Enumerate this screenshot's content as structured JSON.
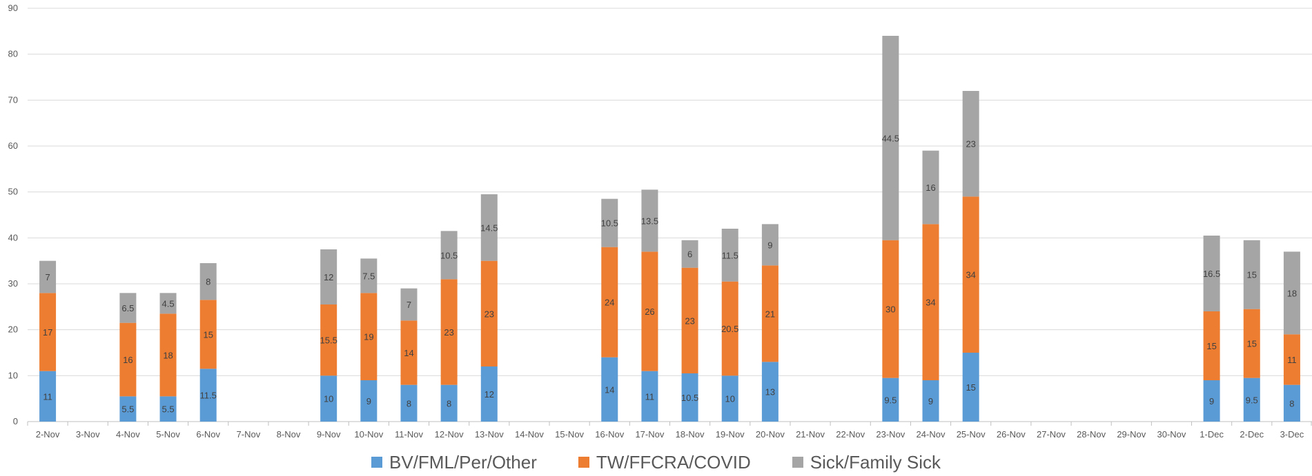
{
  "chart_data": {
    "type": "bar",
    "stacked": true,
    "title": "",
    "xlabel": "",
    "ylabel": "",
    "ylim": [
      0,
      90
    ],
    "yticks": [
      0,
      10,
      20,
      30,
      40,
      50,
      60,
      70,
      80,
      90
    ],
    "grid": "horizontal",
    "legend_position": "bottom",
    "categories": [
      "2-Nov",
      "3-Nov",
      "4-Nov",
      "5-Nov",
      "6-Nov",
      "7-Nov",
      "8-Nov",
      "9-Nov",
      "10-Nov",
      "11-Nov",
      "12-Nov",
      "13-Nov",
      "14-Nov",
      "15-Nov",
      "16-Nov",
      "17-Nov",
      "18-Nov",
      "19-Nov",
      "20-Nov",
      "21-Nov",
      "22-Nov",
      "23-Nov",
      "24-Nov",
      "25-Nov",
      "26-Nov",
      "27-Nov",
      "28-Nov",
      "29-Nov",
      "30-Nov",
      "1-Dec",
      "2-Dec",
      "3-Dec"
    ],
    "series": [
      {
        "name": "BV/FML/Per/Other",
        "color": "#5B9BD5",
        "values": [
          11,
          null,
          5.5,
          5.5,
          11.5,
          null,
          null,
          10,
          9,
          8,
          8,
          12,
          null,
          null,
          14,
          11,
          10.5,
          10,
          13,
          null,
          null,
          9.5,
          9,
          15,
          null,
          null,
          null,
          null,
          null,
          9,
          9.5,
          8
        ],
        "labels": [
          "11",
          "",
          "5.5",
          "5.5",
          "11.5",
          "",
          "",
          "10",
          "9",
          "8",
          "8",
          "12",
          "",
          "",
          "14",
          "11",
          "10.5",
          "10",
          "13",
          "",
          "",
          "9.5",
          "9",
          "15",
          "",
          "",
          "",
          "",
          "",
          "9",
          "9.5",
          "8"
        ]
      },
      {
        "name": "TW/FFCRA/COVID",
        "color": "#ED7D31",
        "values": [
          17,
          null,
          16,
          18,
          15,
          null,
          null,
          15.5,
          19,
          14,
          23,
          23,
          null,
          null,
          24,
          26,
          23,
          20.5,
          21,
          null,
          null,
          30,
          34,
          34,
          null,
          null,
          null,
          null,
          null,
          15,
          15,
          11
        ],
        "labels": [
          "17",
          "",
          "16",
          "18",
          "15",
          "",
          "",
          "15.5",
          "19",
          "14",
          "23",
          "23",
          "",
          "",
          "24",
          "26",
          "23",
          "20.5",
          "21",
          "",
          "",
          "30",
          "34",
          "34",
          "",
          "",
          "",
          "",
          "",
          "15",
          "15",
          "11"
        ]
      },
      {
        "name": "Sick/Family Sick",
        "color": "#A5A5A5",
        "values": [
          7,
          null,
          6.5,
          4.5,
          8,
          null,
          null,
          12,
          7.5,
          7,
          10.5,
          14.5,
          null,
          null,
          10.5,
          13.5,
          6,
          11.5,
          9,
          null,
          null,
          44.5,
          16,
          23,
          null,
          null,
          null,
          null,
          null,
          16.5,
          15,
          18
        ],
        "labels": [
          "7",
          "",
          "6.5",
          "4.5",
          "8",
          "",
          "",
          "12",
          "7.5",
          "7",
          "10.5",
          "14.5",
          "",
          "",
          "10.5",
          "13.5",
          "6",
          "11.5",
          "9",
          "",
          "",
          "44.5",
          "16",
          "23",
          "",
          "",
          "",
          "",
          "",
          "16.5",
          "15",
          "18"
        ]
      }
    ]
  }
}
